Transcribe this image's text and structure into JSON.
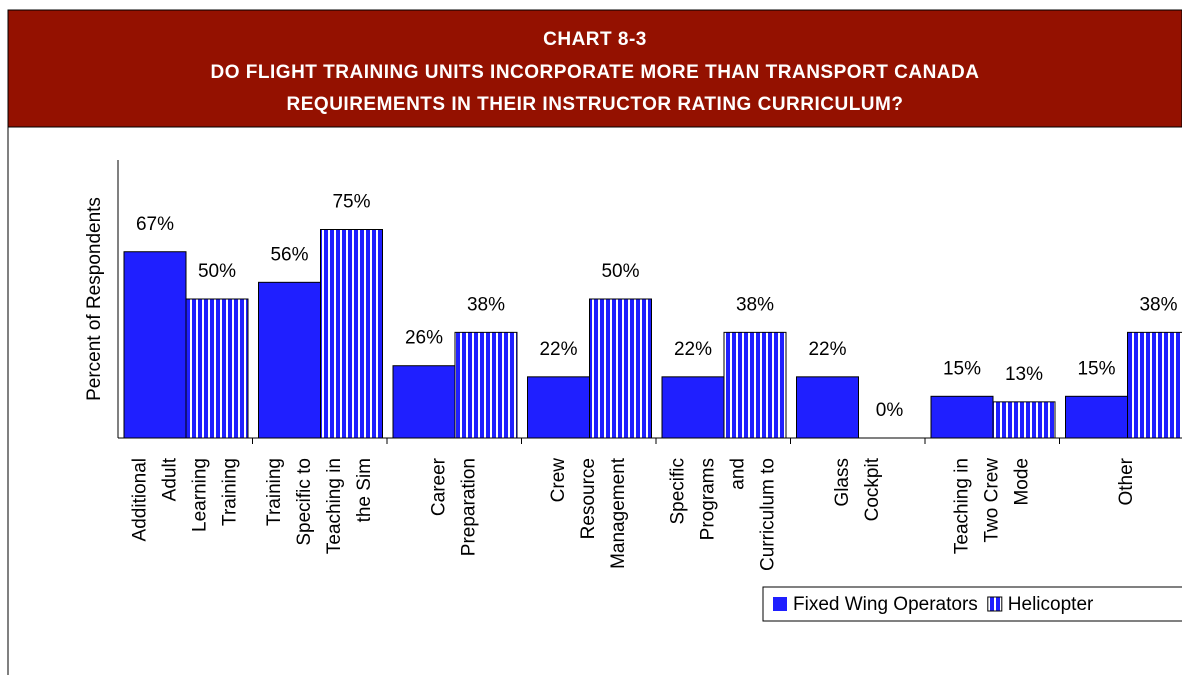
{
  "chart_data": {
    "type": "bar",
    "title": [
      "CHART 8-3",
      "DO FLIGHT TRAINING UNITS INCORPORATE MORE THAN TRANSPORT CANADA",
      "REQUIREMENTS IN THEIR INSTRUCTOR RATING CURRICULUM?"
    ],
    "y_label": "Percent of Respondents",
    "categories": [
      [
        "Additional",
        "Adult",
        "Learning",
        "Training"
      ],
      [
        "Training",
        "Specific to",
        "Teaching in",
        "the Sim"
      ],
      [
        "Career",
        "Preparation"
      ],
      [
        "Crew",
        "Resource",
        "Management"
      ],
      [
        "Specific",
        "Programs",
        "and",
        "Curriculum to"
      ],
      [
        "Glass",
        "Cockpit"
      ],
      [
        "Teaching in",
        "Two Crew",
        "Mode"
      ],
      [
        "Other"
      ]
    ],
    "series": [
      {
        "name": "Fixed Wing Operators",
        "color": "#1f1fff",
        "values": [
          67,
          56,
          26,
          22,
          22,
          22,
          15,
          15
        ],
        "value_labels": [
          "67%",
          "56%",
          "26%",
          "22%",
          "22%",
          "22%",
          "15%",
          "15%"
        ]
      },
      {
        "name": "Helicopter",
        "color": "#1f1fff",
        "pattern": "vertical-stripes",
        "values": [
          50,
          75,
          38,
          50,
          38,
          0,
          13,
          38
        ],
        "value_labels": [
          "50%",
          "75%",
          "38%",
          "50%",
          "38%",
          "0%",
          "13%",
          "38%"
        ]
      }
    ],
    "ylim": [
      0,
      100
    ]
  }
}
